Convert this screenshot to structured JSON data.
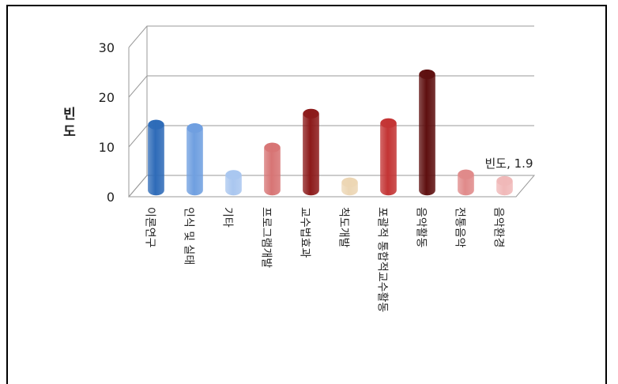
{
  "chart_data": {
    "type": "bar",
    "style": "3d-cylinder",
    "ylabel": "빈도",
    "ylim": [
      0,
      30
    ],
    "yticks": [
      0,
      10,
      20,
      30
    ],
    "grid": true,
    "legend": "none",
    "categories": [
      "이론연구",
      "인식 및 실태",
      "기타",
      "프로그램개발",
      "교수법효과",
      "척도개발",
      "포괄적 통합적교수활동",
      "음악활동",
      "전통음악",
      "음악환경"
    ],
    "series": [
      {
        "name": "빈도",
        "values": [
          13.2,
          12.5,
          3.1,
          8.6,
          15.4,
          1.6,
          13.5,
          23.3,
          3.2,
          1.9
        ],
        "colors": [
          "#2e6bb8",
          "#6f9fe0",
          "#a9c6ef",
          "#d77474",
          "#8c1a1a",
          "#ecd6b4",
          "#c33434",
          "#5e0f0f",
          "#e08a8a",
          "#f0b8b8"
        ]
      }
    ],
    "data_label": {
      "index": 9,
      "text": "빈도, 1.9"
    }
  }
}
